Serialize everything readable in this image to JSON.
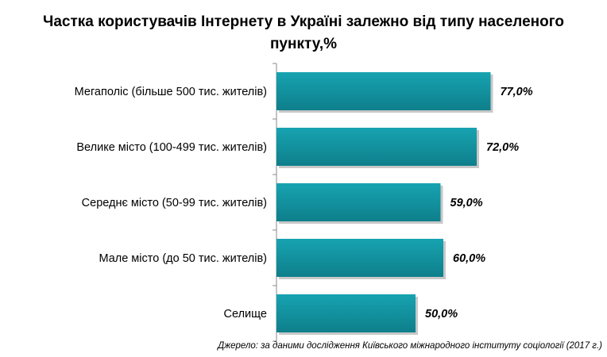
{
  "title_line1": "Частка користувачів Інтернету в Україні залежно від типу населеного",
  "title_line2": "пункту,%",
  "source": "Джерело: за даними дослідження Київського міжнародного інституту соціології (2017 г.)",
  "colors": {
    "bar": "#17a3b1",
    "bar_dark": "#0e7f8b",
    "axis": "#888888"
  },
  "chart_data": {
    "type": "bar",
    "orientation": "horizontal",
    "title": "Частка користувачів Інтернету в Україні залежно від типу населеного пункту,%",
    "categories": [
      "Мегаполіс  (більше 500 тис. жителів)",
      "Велике  місто (100-499 тис. жителів)",
      "Середнє  місто (50-99 тис. жителів)",
      "Мале  місто (до 50 тис. жителів)",
      "Селище"
    ],
    "values": [
      77.0,
      72.0,
      59.0,
      60.0,
      50.0
    ],
    "value_labels": [
      "77,0%",
      "72,0%",
      "59,0%",
      "60,0%",
      "50,0%"
    ],
    "xlim": [
      0,
      100
    ],
    "grid": false,
    "legend": "none"
  }
}
